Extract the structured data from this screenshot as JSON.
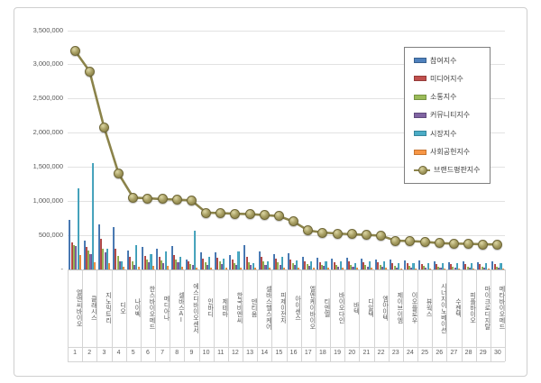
{
  "chart_data": {
    "type": "bar",
    "note": "grouped bar chart with overlaid line series (brand reputation index ranking)",
    "grid": true,
    "legend_position": "right-overlay",
    "ylim": [
      0,
      3500000
    ],
    "y_ticks": [
      "3,500,000",
      "3,000,000",
      "2,500,000",
      "2,000,000",
      "1,500,000",
      "1,000,000",
      "500,000",
      "-"
    ],
    "categories": [
      "엘앤씨바이오",
      "클래시스",
      "지노믹트리",
      "디오",
      "나이벡",
      "한스바이오메드",
      "메디아나",
      "셀바스AI",
      "에스디바이오센서",
      "인바디",
      "제테마",
      "한국비엔씨",
      "덴티움",
      "셀바스헬스케어",
      "피제이전자",
      "아이센스",
      "엘엔케이바이오",
      "티엔엘",
      "바이오다인",
      "바텍",
      "디알텍",
      "엠아이텍",
      "제이브이엠",
      "이오플로우",
      "뷰웍스",
      "시너지이노베이션",
      "수젠텍",
      "피플바이오",
      "마이크로디지탈",
      "메타바이오메드"
    ],
    "category_numbers": [
      "1",
      "2",
      "3",
      "4",
      "5",
      "6",
      "7",
      "8",
      "9",
      "10",
      "11",
      "12",
      "13",
      "14",
      "15",
      "16",
      "17",
      "18",
      "19",
      "20",
      "21",
      "22",
      "23",
      "24",
      "25",
      "26",
      "27",
      "28",
      "29",
      "30"
    ],
    "series": [
      {
        "name": "참여지수",
        "type": "bar",
        "color": "#4F81BD",
        "edge": "#39618f",
        "values": [
          720000,
          420000,
          660000,
          620000,
          280000,
          330000,
          300000,
          340000,
          150000,
          250000,
          255000,
          210000,
          360000,
          260000,
          230000,
          240000,
          180000,
          170000,
          160000,
          170000,
          160000,
          150000,
          140000,
          130000,
          130000,
          120000,
          110000,
          115000,
          110000,
          115000
        ]
      },
      {
        "name": "미디어지수",
        "type": "bar",
        "color": "#C0504D",
        "edge": "#953b39",
        "values": [
          390000,
          330000,
          450000,
          300000,
          190000,
          200000,
          190000,
          210000,
          120000,
          160000,
          170000,
          150000,
          180000,
          190000,
          160000,
          150000,
          120000,
          110000,
          110000,
          120000,
          100000,
          100000,
          90000,
          90000,
          85000,
          80000,
          80000,
          80000,
          75000,
          80000
        ]
      },
      {
        "name": "소통지수",
        "type": "bar",
        "color": "#9BBB59",
        "edge": "#769342",
        "values": [
          360000,
          280000,
          300000,
          200000,
          120000,
          140000,
          130000,
          150000,
          80000,
          110000,
          120000,
          90000,
          100000,
          120000,
          110000,
          90000,
          80000,
          70000,
          70000,
          70000,
          60000,
          60000,
          50000,
          50000,
          50000,
          45000,
          45000,
          45000,
          45000,
          45000
        ]
      },
      {
        "name": "커뮤니티지수",
        "type": "bar",
        "color": "#8064A2",
        "edge": "#614a7d",
        "values": [
          340000,
          230000,
          250000,
          120000,
          70000,
          100000,
          90000,
          100000,
          60000,
          70000,
          80000,
          60000,
          60000,
          70000,
          60000,
          60000,
          50000,
          50000,
          40000,
          40000,
          40000,
          40000,
          30000,
          30000,
          30000,
          30000,
          30000,
          30000,
          25000,
          25000
        ]
      },
      {
        "name": "시장지수",
        "type": "bar",
        "color": "#4BACC6",
        "edge": "#36859b",
        "values": [
          1180000,
          1560000,
          300000,
          120000,
          350000,
          220000,
          270000,
          180000,
          570000,
          180000,
          160000,
          270000,
          90000,
          120000,
          190000,
          130000,
          120000,
          120000,
          120000,
          95000,
          125000,
          125000,
          95000,
          95000,
          90000,
          90000,
          90000,
          90000,
          90000,
          90000
        ]
      },
      {
        "name": "사회공헌지수",
        "type": "bar",
        "color": "#F79646",
        "edge": "#c67531",
        "values": [
          210000,
          100000,
          90000,
          40000,
          35000,
          50000,
          50000,
          40000,
          30000,
          30000,
          30000,
          30000,
          20000,
          30000,
          30000,
          30000,
          20000,
          20000,
          20000,
          20000,
          20000,
          20000,
          15000,
          15000,
          15000,
          15000,
          15000,
          15000,
          15000,
          15000
        ]
      },
      {
        "name": "브랜드평판지수",
        "type": "line",
        "color": "#8b834a",
        "marker_fill": "#a59c60",
        "marker_edge": "#6e6636",
        "values": [
          3200000,
          2900000,
          2080000,
          1400000,
          1050000,
          1040000,
          1030000,
          1020000,
          1010000,
          830000,
          825000,
          815000,
          810000,
          795000,
          780000,
          700000,
          570000,
          540000,
          525000,
          515000,
          505000,
          495000,
          420000,
          415000,
          405000,
          385000,
          378000,
          375000,
          368000,
          365000
        ]
      }
    ]
  }
}
